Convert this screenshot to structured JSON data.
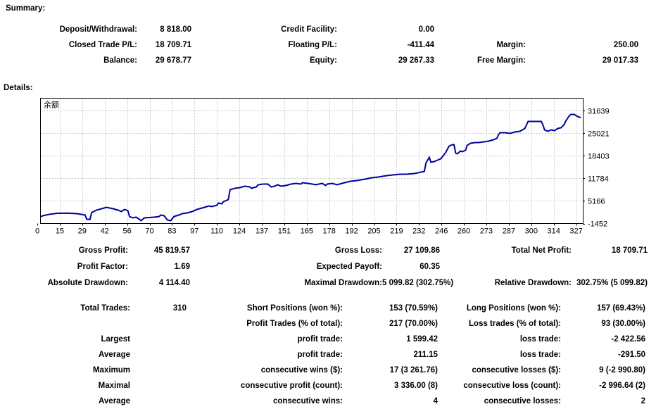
{
  "colors": {
    "accent_line": "#0000A0",
    "grid": "#C8C8C8",
    "frame": "#000000",
    "text": "#000000",
    "background": "#FFFFFF"
  },
  "summary": {
    "heading": "Summary:",
    "rows": [
      [
        "Deposit/Withdrawal:",
        "8 818.00",
        "Credit Facility:",
        "0.00",
        "",
        ""
      ],
      [
        "Closed Trade P/L:",
        "18 709.71",
        "Floating P/L:",
        "-411.44",
        "Margin:",
        "250.00"
      ],
      [
        "Balance:",
        "29 678.77",
        "Equity:",
        "29 267.33",
        "Free Margin:",
        "29 017.33"
      ]
    ]
  },
  "details": {
    "heading": "Details:"
  },
  "mid": {
    "rows": [
      [
        "Gross Profit:",
        "45 819.57",
        "Gross Loss:",
        "27 109.86",
        "Total Net Profit:",
        "18 709.71"
      ],
      [
        "Profit Factor:",
        "1.69",
        "Expected Payoff:",
        "60.35",
        "",
        ""
      ],
      [
        "Absolute Drawdown:",
        "4 114.40",
        "Maximal Drawdown:",
        "5 099.82 (302.75%)",
        "Relative Drawdown:",
        "302.75% (5 099.82)"
      ]
    ]
  },
  "stats": {
    "rows": [
      [
        "Total Trades:",
        "310",
        "Short Positions (won %):",
        "153 (70.59%)",
        "Long Positions (won %):",
        "157 (69.43%)"
      ],
      [
        "",
        "",
        "Profit Trades (% of total):",
        "217 (70.00%)",
        "Loss trades (% of total):",
        "93 (30.00%)"
      ],
      [
        "Largest",
        "",
        "profit trade:",
        "1 599.42",
        "loss trade:",
        "-2 422.56"
      ],
      [
        "Average",
        "",
        "profit trade:",
        "211.15",
        "loss trade:",
        "-291.50"
      ],
      [
        "Maximum",
        "",
        "consecutive wins ($):",
        "17 (3 261.76)",
        "consecutive losses ($):",
        "9 (-2 990.80)"
      ],
      [
        "Maximal",
        "",
        "consecutive profit (count):",
        "3 336.00 (8)",
        "consecutive loss (count):",
        "-2 996.64 (2)"
      ],
      [
        "Average",
        "",
        "consecutive wins:",
        "4",
        "consecutive losses:",
        "2"
      ]
    ]
  },
  "chart_data": {
    "type": "line",
    "title": "余额",
    "series_name": "Balance",
    "legend_position": "top-left-inside",
    "grid": "dotted",
    "x_ticks": [
      0,
      15,
      29,
      42,
      56,
      70,
      83,
      97,
      110,
      124,
      137,
      151,
      165,
      178,
      192,
      205,
      219,
      232,
      246,
      260,
      273,
      287,
      300,
      314,
      327
    ],
    "y_ticks": [
      -1452,
      5166,
      11784,
      18403,
      25021,
      31639
    ],
    "xlim": [
      0,
      330
    ],
    "value_at_bottom": -1452,
    "value_at_top": 35358,
    "points": [
      [
        0,
        600
      ],
      [
        4,
        900
      ],
      [
        8,
        1300
      ],
      [
        12,
        1550
      ],
      [
        18,
        1600
      ],
      [
        24,
        1450
      ],
      [
        29,
        1050
      ],
      [
        30,
        -200
      ],
      [
        32,
        -250
      ],
      [
        33,
        1800
      ],
      [
        36,
        2450
      ],
      [
        39,
        2900
      ],
      [
        42,
        3300
      ],
      [
        46,
        2900
      ],
      [
        49,
        2480
      ],
      [
        51,
        2060
      ],
      [
        53,
        2680
      ],
      [
        55,
        2270
      ],
      [
        56,
        620
      ],
      [
        58,
        200
      ],
      [
        60,
        410
      ],
      [
        62,
        -210
      ],
      [
        63,
        -620
      ],
      [
        65,
        200
      ],
      [
        71,
        410
      ],
      [
        74,
        620
      ],
      [
        75,
        1030
      ],
      [
        77,
        820
      ],
      [
        79,
        -420
      ],
      [
        81,
        -620
      ],
      [
        83,
        620
      ],
      [
        86,
        1030
      ],
      [
        88,
        1440
      ],
      [
        91,
        1650
      ],
      [
        94,
        2060
      ],
      [
        97,
        2680
      ],
      [
        100,
        3100
      ],
      [
        103,
        3510
      ],
      [
        104,
        3720
      ],
      [
        106,
        3510
      ],
      [
        109,
        3930
      ],
      [
        110,
        4550
      ],
      [
        112,
        4340
      ],
      [
        113,
        4960
      ],
      [
        115,
        5370
      ],
      [
        116,
        5600
      ],
      [
        117,
        8480
      ],
      [
        120,
        8890
      ],
      [
        123,
        9100
      ],
      [
        126,
        9510
      ],
      [
        129,
        9300
      ],
      [
        130,
        8890
      ],
      [
        133,
        9300
      ],
      [
        134,
        9920
      ],
      [
        137,
        10130
      ],
      [
        140,
        10130
      ],
      [
        142,
        9300
      ],
      [
        144,
        9510
      ],
      [
        146,
        9920
      ],
      [
        148,
        9510
      ],
      [
        151,
        9720
      ],
      [
        154,
        10130
      ],
      [
        157,
        10340
      ],
      [
        160,
        10130
      ],
      [
        161,
        10540
      ],
      [
        164,
        10340
      ],
      [
        167,
        10130
      ],
      [
        169,
        9920
      ],
      [
        173,
        10340
      ],
      [
        175,
        9720
      ],
      [
        176,
        10130
      ],
      [
        179,
        10340
      ],
      [
        182,
        9920
      ],
      [
        185,
        10340
      ],
      [
        190,
        10960
      ],
      [
        194,
        11160
      ],
      [
        199,
        11580
      ],
      [
        203,
        11990
      ],
      [
        207,
        12200
      ],
      [
        212,
        12610
      ],
      [
        216,
        12820
      ],
      [
        220,
        13030
      ],
      [
        224,
        13030
      ],
      [
        229,
        13230
      ],
      [
        233,
        13650
      ],
      [
        235,
        13850
      ],
      [
        236,
        16330
      ],
      [
        238,
        17990
      ],
      [
        239,
        16540
      ],
      [
        241,
        16750
      ],
      [
        243,
        17160
      ],
      [
        245,
        17580
      ],
      [
        248,
        19440
      ],
      [
        250,
        21300
      ],
      [
        252,
        21710
      ],
      [
        253,
        21710
      ],
      [
        254,
        19230
      ],
      [
        255,
        19020
      ],
      [
        257,
        19850
      ],
      [
        258,
        19640
      ],
      [
        260,
        20060
      ],
      [
        261,
        21500
      ],
      [
        263,
        22120
      ],
      [
        266,
        22330
      ],
      [
        268,
        22330
      ],
      [
        271,
        22540
      ],
      [
        274,
        22750
      ],
      [
        277,
        23160
      ],
      [
        279,
        23570
      ],
      [
        280,
        24610
      ],
      [
        281,
        25230
      ],
      [
        284,
        25230
      ],
      [
        287,
        25020
      ],
      [
        290,
        25430
      ],
      [
        293,
        25640
      ],
      [
        296,
        26470
      ],
      [
        297,
        27500
      ],
      [
        298,
        28530
      ],
      [
        301,
        28530
      ],
      [
        304,
        28530
      ],
      [
        306,
        28530
      ],
      [
        307,
        27500
      ],
      [
        308,
        26050
      ],
      [
        310,
        25640
      ],
      [
        312,
        26050
      ],
      [
        314,
        25850
      ],
      [
        316,
        26470
      ],
      [
        318,
        26670
      ],
      [
        320,
        27710
      ],
      [
        321,
        28740
      ],
      [
        323,
        30190
      ],
      [
        324,
        30600
      ],
      [
        326,
        30600
      ],
      [
        328,
        29980
      ],
      [
        329,
        29780
      ],
      [
        330,
        29680
      ]
    ]
  }
}
